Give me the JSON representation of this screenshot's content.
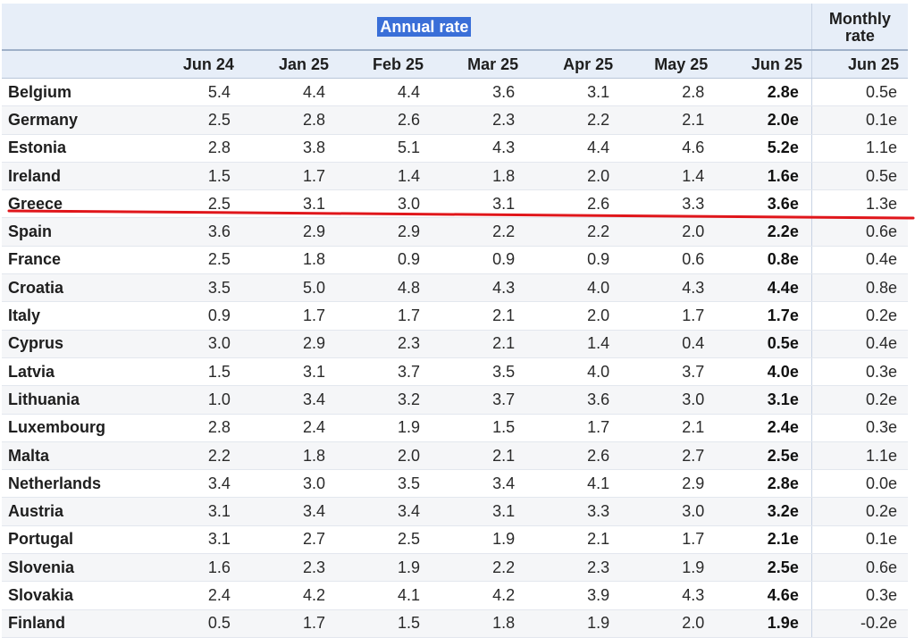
{
  "header": {
    "annual_label": "Annual rate",
    "monthly_label_line1": "Monthly",
    "monthly_label_line2": "rate",
    "months": [
      "Jun 24",
      "Jan 25",
      "Feb 25",
      "Mar 25",
      "Apr 25",
      "May 25",
      "Jun 25"
    ],
    "monthly_month": "Jun 25"
  },
  "annotation_color": "#e0161b",
  "rows": [
    {
      "country": "Belgium",
      "values": [
        "5.4",
        "4.4",
        "4.4",
        "3.6",
        "3.1",
        "2.8"
      ],
      "latest": "2.8e",
      "monthly": "0.5e"
    },
    {
      "country": "Germany",
      "values": [
        "2.5",
        "2.8",
        "2.6",
        "2.3",
        "2.2",
        "2.1"
      ],
      "latest": "2.0e",
      "monthly": "0.1e"
    },
    {
      "country": "Estonia",
      "values": [
        "2.8",
        "3.8",
        "5.1",
        "4.3",
        "4.4",
        "4.6"
      ],
      "latest": "5.2e",
      "monthly": "1.1e"
    },
    {
      "country": "Ireland",
      "values": [
        "1.5",
        "1.7",
        "1.4",
        "1.8",
        "2.0",
        "1.4"
      ],
      "latest": "1.6e",
      "monthly": "0.5e"
    },
    {
      "country": "Greece",
      "values": [
        "2.5",
        "3.1",
        "3.0",
        "3.1",
        "2.6",
        "3.3"
      ],
      "latest": "3.6e",
      "monthly": "1.3e"
    },
    {
      "country": "Spain",
      "values": [
        "3.6",
        "2.9",
        "2.9",
        "2.2",
        "2.2",
        "2.0"
      ],
      "latest": "2.2e",
      "monthly": "0.6e"
    },
    {
      "country": "France",
      "values": [
        "2.5",
        "1.8",
        "0.9",
        "0.9",
        "0.9",
        "0.6"
      ],
      "latest": "0.8e",
      "monthly": "0.4e"
    },
    {
      "country": "Croatia",
      "values": [
        "3.5",
        "5.0",
        "4.8",
        "4.3",
        "4.0",
        "4.3"
      ],
      "latest": "4.4e",
      "monthly": "0.8e"
    },
    {
      "country": "Italy",
      "values": [
        "0.9",
        "1.7",
        "1.7",
        "2.1",
        "2.0",
        "1.7"
      ],
      "latest": "1.7e",
      "monthly": "0.2e"
    },
    {
      "country": "Cyprus",
      "values": [
        "3.0",
        "2.9",
        "2.3",
        "2.1",
        "1.4",
        "0.4"
      ],
      "latest": "0.5e",
      "monthly": "0.4e"
    },
    {
      "country": "Latvia",
      "values": [
        "1.5",
        "3.1",
        "3.7",
        "3.5",
        "4.0",
        "3.7"
      ],
      "latest": "4.0e",
      "monthly": "0.3e"
    },
    {
      "country": "Lithuania",
      "values": [
        "1.0",
        "3.4",
        "3.2",
        "3.7",
        "3.6",
        "3.0"
      ],
      "latest": "3.1e",
      "monthly": "0.2e"
    },
    {
      "country": "Luxembourg",
      "values": [
        "2.8",
        "2.4",
        "1.9",
        "1.5",
        "1.7",
        "2.1"
      ],
      "latest": "2.4e",
      "monthly": "0.3e"
    },
    {
      "country": "Malta",
      "values": [
        "2.2",
        "1.8",
        "2.0",
        "2.1",
        "2.6",
        "2.7"
      ],
      "latest": "2.5e",
      "monthly": "1.1e"
    },
    {
      "country": "Netherlands",
      "values": [
        "3.4",
        "3.0",
        "3.5",
        "3.4",
        "4.1",
        "2.9"
      ],
      "latest": "2.8e",
      "monthly": "0.0e"
    },
    {
      "country": "Austria",
      "values": [
        "3.1",
        "3.4",
        "3.4",
        "3.1",
        "3.3",
        "3.0"
      ],
      "latest": "3.2e",
      "monthly": "0.2e"
    },
    {
      "country": "Portugal",
      "values": [
        "3.1",
        "2.7",
        "2.5",
        "1.9",
        "2.1",
        "1.7"
      ],
      "latest": "2.1e",
      "monthly": "0.1e"
    },
    {
      "country": "Slovenia",
      "values": [
        "1.6",
        "2.3",
        "1.9",
        "2.2",
        "2.3",
        "1.9"
      ],
      "latest": "2.5e",
      "monthly": "0.6e"
    },
    {
      "country": "Slovakia",
      "values": [
        "2.4",
        "4.2",
        "4.1",
        "4.2",
        "3.9",
        "4.3"
      ],
      "latest": "4.6e",
      "monthly": "0.3e"
    },
    {
      "country": "Finland",
      "values": [
        "0.5",
        "1.7",
        "1.5",
        "1.8",
        "1.9",
        "2.0"
      ],
      "latest": "1.9e",
      "monthly": "-0.2e"
    }
  ]
}
